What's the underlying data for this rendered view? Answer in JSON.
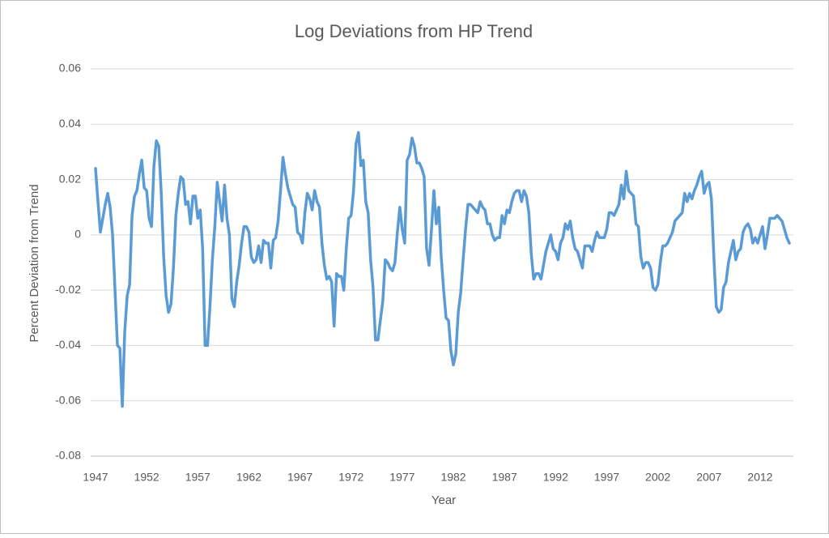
{
  "chart_data": {
    "type": "line",
    "title": "Log Deviations from HP Trend",
    "x_label": "Year",
    "y_label": "Percent Deviation from Trend",
    "color": "#5b9bd5",
    "grid": true,
    "ylim": [
      -0.08,
      0.06
    ],
    "yticks": [
      -0.08,
      -0.06,
      -0.04,
      -0.02,
      0,
      0.02,
      0.04,
      0.06
    ],
    "categories": [
      "1947",
      null,
      null,
      null,
      null,
      null,
      null,
      null,
      null,
      null,
      null,
      null,
      null,
      null,
      null,
      null,
      null,
      null,
      null,
      null,
      null,
      "1952",
      null,
      null,
      null,
      null,
      null,
      null,
      null,
      null,
      null,
      null,
      null,
      null,
      null,
      null,
      null,
      null,
      null,
      null,
      null,
      null,
      "1957",
      null,
      null,
      null,
      null,
      null,
      null,
      null,
      null,
      null,
      null,
      null,
      null,
      null,
      null,
      null,
      null,
      null,
      null,
      null,
      null,
      "1962",
      null,
      null,
      null,
      null,
      null,
      null,
      null,
      null,
      null,
      null,
      null,
      null,
      null,
      null,
      null,
      null,
      null,
      null,
      null,
      null,
      "1967",
      null,
      null,
      null,
      null,
      null,
      null,
      null,
      null,
      null,
      null,
      null,
      null,
      null,
      null,
      null,
      null,
      null,
      null,
      null,
      null,
      "1972",
      null,
      null,
      null,
      null,
      null,
      null,
      null,
      null,
      null,
      null,
      null,
      null,
      null,
      null,
      null,
      null,
      null,
      null,
      null,
      null,
      "1977",
      null,
      null,
      null,
      null,
      null,
      null,
      null,
      null,
      null,
      null,
      null,
      null,
      null,
      null,
      null,
      null,
      null,
      null,
      null,
      null,
      "1982",
      null,
      null,
      null,
      null,
      null,
      null,
      null,
      null,
      null,
      null,
      null,
      null,
      null,
      null,
      null,
      null,
      null,
      null,
      null,
      null,
      "1987",
      null,
      null,
      null,
      null,
      null,
      null,
      null,
      null,
      null,
      null,
      null,
      null,
      null,
      null,
      null,
      null,
      null,
      null,
      null,
      null,
      "1992",
      null,
      null,
      null,
      null,
      null,
      null,
      null,
      null,
      null,
      null,
      null,
      null,
      null,
      null,
      null,
      null,
      null,
      null,
      null,
      null,
      "1997",
      null,
      null,
      null,
      null,
      null,
      null,
      null,
      null,
      null,
      null,
      null,
      null,
      null,
      null,
      null,
      null,
      null,
      null,
      null,
      null,
      "2002",
      null,
      null,
      null,
      null,
      null,
      null,
      null,
      null,
      null,
      null,
      null,
      null,
      null,
      null,
      null,
      null,
      null,
      null,
      null,
      null,
      "2007",
      null,
      null,
      null,
      null,
      null,
      null,
      null,
      null,
      null,
      null,
      null,
      null,
      null,
      null,
      null,
      null,
      null,
      null,
      null,
      null,
      "2012",
      null,
      null,
      null,
      null,
      null,
      null,
      null,
      null,
      null,
      null,
      null,
      null
    ],
    "values": [
      0.024,
      0.012,
      0.001,
      0.006,
      0.011,
      0.015,
      0.01,
      0,
      -0.02,
      -0.04,
      -0.041,
      -0.062,
      -0.035,
      -0.022,
      -0.018,
      0.007,
      0.014,
      0.016,
      0.022,
      0.027,
      0.017,
      0.016,
      0.006,
      0.003,
      0.025,
      0.034,
      0.032,
      0.015,
      -0.008,
      -0.022,
      -0.028,
      -0.025,
      -0.012,
      0.007,
      0.015,
      0.021,
      0.02,
      0.011,
      0.012,
      0.004,
      0.014,
      0.014,
      0.006,
      0.009,
      -0.005,
      -0.04,
      -0.04,
      -0.026,
      -0.009,
      0.003,
      0.019,
      0.012,
      0.005,
      0.018,
      0.006,
      0,
      -0.023,
      -0.026,
      -0.017,
      -0.011,
      -0.003,
      0.003,
      0.003,
      0.001,
      -0.008,
      -0.01,
      -0.009,
      -0.004,
      -0.01,
      -0.002,
      -0.003,
      -0.003,
      -0.012,
      -0.002,
      -0.001,
      0.005,
      0.016,
      0.028,
      0.022,
      0.017,
      0.014,
      0.011,
      0.01,
      0.001,
      0,
      -0.003,
      0.008,
      0.015,
      0.013,
      0.009,
      0.016,
      0.012,
      0.01,
      -0.003,
      -0.011,
      -0.016,
      -0.015,
      -0.017,
      -0.033,
      -0.014,
      -0.015,
      -0.015,
      -0.02,
      -0.005,
      0.006,
      0.007,
      0.016,
      0.033,
      0.037,
      0.025,
      0.027,
      0.012,
      0.008,
      -0.009,
      -0.019,
      -0.038,
      -0.038,
      -0.031,
      -0.024,
      -0.009,
      -0.01,
      -0.012,
      -0.013,
      -0.01,
      0.001,
      0.01,
      0.002,
      -0.003,
      0.027,
      0.029,
      0.035,
      0.032,
      0.026,
      0.026,
      0.024,
      0.021,
      -0.005,
      -0.011,
      0.002,
      0.016,
      0.004,
      0.01,
      -0.008,
      -0.02,
      -0.03,
      -0.031,
      -0.042,
      -0.047,
      -0.043,
      -0.028,
      -0.021,
      -0.009,
      0.002,
      0.011,
      0.011,
      0.01,
      0.009,
      0.008,
      0.012,
      0.01,
      0.009,
      0.004,
      0.004,
      0,
      -0.002,
      -0.001,
      -0.001,
      0.007,
      0.004,
      0.009,
      0.008,
      0.012,
      0.015,
      0.016,
      0.016,
      0.012,
      0.016,
      0.014,
      0.008,
      -0.007,
      -0.016,
      -0.014,
      -0.014,
      -0.016,
      -0.011,
      -0.006,
      -0.003,
      0,
      -0.005,
      -0.006,
      -0.009,
      -0.003,
      -0.001,
      0.004,
      0.002,
      0.005,
      -0.001,
      -0.005,
      -0.006,
      -0.009,
      -0.012,
      -0.004,
      -0.004,
      -0.004,
      -0.006,
      -0.002,
      0.001,
      -0.001,
      -0.001,
      -0.001,
      0.002,
      0.008,
      0.008,
      0.007,
      0.009,
      0.011,
      0.018,
      0.013,
      0.023,
      0.016,
      0.015,
      0.014,
      0.004,
      0.003,
      -0.008,
      -0.012,
      -0.01,
      -0.01,
      -0.012,
      -0.019,
      -0.02,
      -0.018,
      -0.01,
      -0.004,
      -0.004,
      -0.003,
      -0.001,
      0.001,
      0.005,
      0.006,
      0.007,
      0.008,
      0.015,
      0.012,
      0.015,
      0.013,
      0.016,
      0.018,
      0.021,
      0.023,
      0.015,
      0.018,
      0.019,
      0.013,
      -0.008,
      -0.026,
      -0.028,
      -0.027,
      -0.019,
      -0.017,
      -0.01,
      -0.006,
      -0.002,
      -0.009,
      -0.006,
      -0.005,
      0.001,
      0.003,
      0.004,
      0.002,
      -0.003,
      -0.001,
      -0.003,
      0,
      0.003,
      -0.005,
      0,
      0.006,
      0.006,
      0.006,
      0.007,
      0.006,
      0.005,
      0.002,
      -0.001,
      -0.003
    ]
  }
}
